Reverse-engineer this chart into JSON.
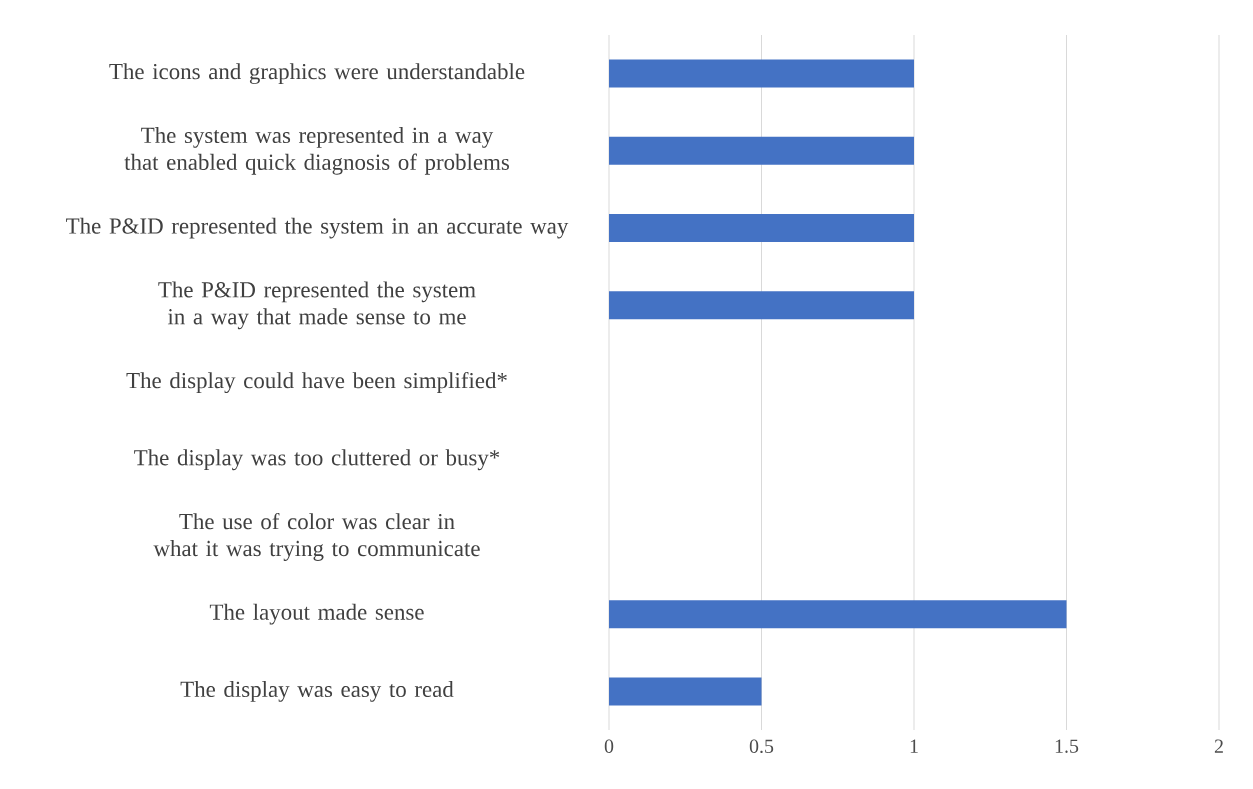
{
  "chart_data": {
    "type": "bar",
    "orientation": "horizontal",
    "color": "#4472c4",
    "categories": [
      "The icons and graphics were understandable",
      "The system was represented in a way that enabled quick diagnosis of problems",
      "The P&ID represented the system in an accurate way",
      "The P&ID represented the system in a way that made sense to me",
      "The display could have been simplified*",
      "The display was too cluttered or busy*",
      "The use of color was clear in what it was trying to communicate",
      "The layout made sense",
      "The display was easy to read"
    ],
    "values": [
      1,
      1,
      1,
      1,
      0,
      0,
      0,
      1.5,
      0.5
    ],
    "xlim": [
      0,
      2
    ],
    "xticks": [
      0,
      0.5,
      1,
      1.5,
      2
    ],
    "grid": "x"
  }
}
